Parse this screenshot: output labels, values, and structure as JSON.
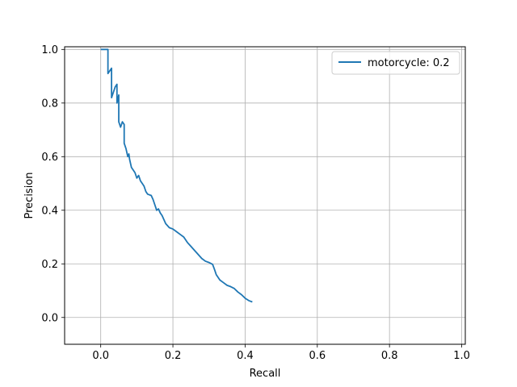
{
  "chart_data": {
    "type": "line",
    "title": "",
    "xlabel": "Recall",
    "ylabel": "Precision",
    "xlim": [
      -0.1,
      1.01
    ],
    "ylim": [
      -0.1,
      1.01
    ],
    "xticks": [
      0.0,
      0.2,
      0.4,
      0.6,
      0.8,
      1.0
    ],
    "yticks": [
      0.0,
      0.2,
      0.4,
      0.6,
      0.8,
      1.0
    ],
    "xtick_labels": [
      "0.0",
      "0.2",
      "0.4",
      "0.6",
      "0.8",
      "1.0"
    ],
    "ytick_labels": [
      "0.0",
      "0.2",
      "0.4",
      "0.6",
      "0.8",
      "1.0"
    ],
    "grid": true,
    "legend_position": "top-right",
    "series": [
      {
        "name": "motorcycle: 0.2",
        "color": "#1f77b4",
        "points": [
          [
            0.0,
            1.0
          ],
          [
            0.02,
            1.0
          ],
          [
            0.02,
            0.91
          ],
          [
            0.025,
            0.92
          ],
          [
            0.03,
            0.93
          ],
          [
            0.03,
            0.82
          ],
          [
            0.04,
            0.86
          ],
          [
            0.045,
            0.87
          ],
          [
            0.045,
            0.8
          ],
          [
            0.05,
            0.83
          ],
          [
            0.05,
            0.73
          ],
          [
            0.055,
            0.71
          ],
          [
            0.06,
            0.73
          ],
          [
            0.065,
            0.72
          ],
          [
            0.065,
            0.65
          ],
          [
            0.07,
            0.63
          ],
          [
            0.075,
            0.6
          ],
          [
            0.078,
            0.61
          ],
          [
            0.08,
            0.59
          ],
          [
            0.085,
            0.56
          ],
          [
            0.09,
            0.55
          ],
          [
            0.095,
            0.54
          ],
          [
            0.1,
            0.52
          ],
          [
            0.105,
            0.53
          ],
          [
            0.11,
            0.51
          ],
          [
            0.115,
            0.5
          ],
          [
            0.12,
            0.49
          ],
          [
            0.125,
            0.47
          ],
          [
            0.13,
            0.46
          ],
          [
            0.14,
            0.455
          ],
          [
            0.145,
            0.44
          ],
          [
            0.15,
            0.42
          ],
          [
            0.155,
            0.4
          ],
          [
            0.16,
            0.405
          ],
          [
            0.165,
            0.39
          ],
          [
            0.17,
            0.38
          ],
          [
            0.18,
            0.35
          ],
          [
            0.19,
            0.335
          ],
          [
            0.2,
            0.33
          ],
          [
            0.21,
            0.32
          ],
          [
            0.22,
            0.31
          ],
          [
            0.23,
            0.3
          ],
          [
            0.24,
            0.28
          ],
          [
            0.25,
            0.265
          ],
          [
            0.26,
            0.25
          ],
          [
            0.27,
            0.235
          ],
          [
            0.28,
            0.22
          ],
          [
            0.29,
            0.21
          ],
          [
            0.3,
            0.205
          ],
          [
            0.31,
            0.198
          ],
          [
            0.315,
            0.18
          ],
          [
            0.32,
            0.16
          ],
          [
            0.33,
            0.14
          ],
          [
            0.34,
            0.13
          ],
          [
            0.35,
            0.12
          ],
          [
            0.36,
            0.115
          ],
          [
            0.37,
            0.108
          ],
          [
            0.38,
            0.095
          ],
          [
            0.39,
            0.085
          ],
          [
            0.4,
            0.072
          ],
          [
            0.41,
            0.063
          ],
          [
            0.42,
            0.058
          ]
        ]
      }
    ]
  }
}
